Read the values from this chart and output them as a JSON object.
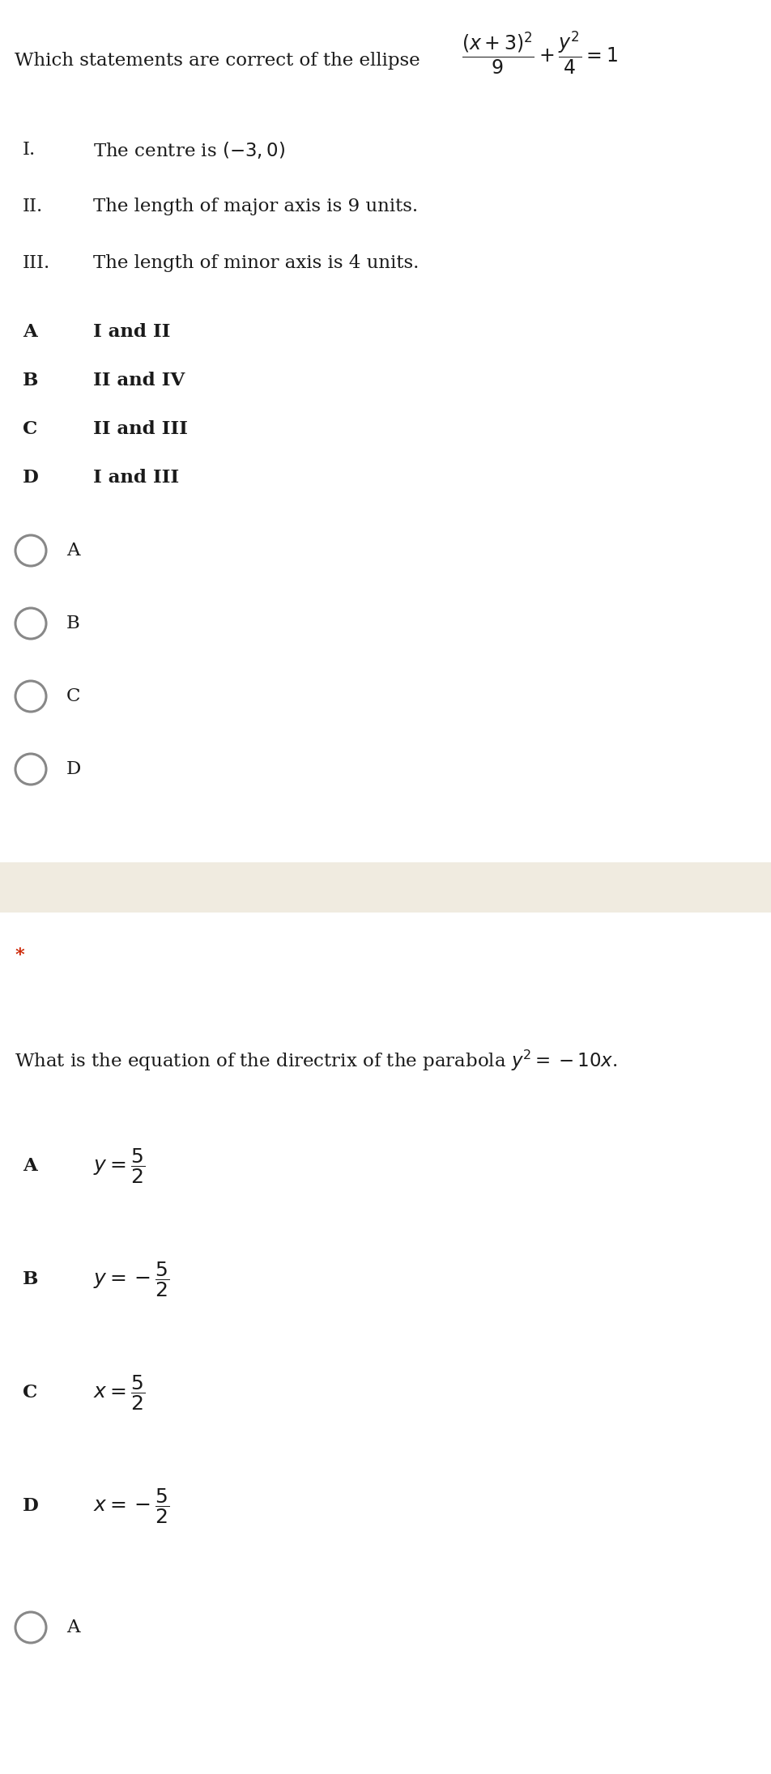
{
  "bg_color": "#ffffff",
  "separator_color": "#f0ebe0",
  "star_color": "#cc2200",
  "text_color": "#1a1a1a",
  "q1": {
    "question_prefix": "Which statements are correct of the ellipse",
    "statements": [
      {
        "num": "I.",
        "text": "The centre is $(-3,0)$"
      },
      {
        "num": "II.",
        "text": "The length of major axis is 9 units."
      },
      {
        "num": "III.",
        "text": "The length of minor axis is 4 units."
      }
    ],
    "options": [
      {
        "letter": "A",
        "text": "I and II"
      },
      {
        "letter": "B",
        "text": "II and IV"
      },
      {
        "letter": "C",
        "text": "II and III"
      },
      {
        "letter": "D",
        "text": "I and III"
      }
    ],
    "radio_options": [
      "A",
      "B",
      "C",
      "D"
    ]
  },
  "q2": {
    "star": "*",
    "question": "What is the equation of the directrix of the parabola $y^{2}=-10x$.",
    "options": [
      {
        "letter": "A",
        "text": "$y=\\dfrac{5}{2}$"
      },
      {
        "letter": "B",
        "text": "$y=-\\dfrac{5}{2}$"
      },
      {
        "letter": "C",
        "text": "$x=\\dfrac{5}{2}$"
      },
      {
        "letter": "D",
        "text": "$x=-\\dfrac{5}{2}$"
      }
    ],
    "radio_label": "A"
  }
}
